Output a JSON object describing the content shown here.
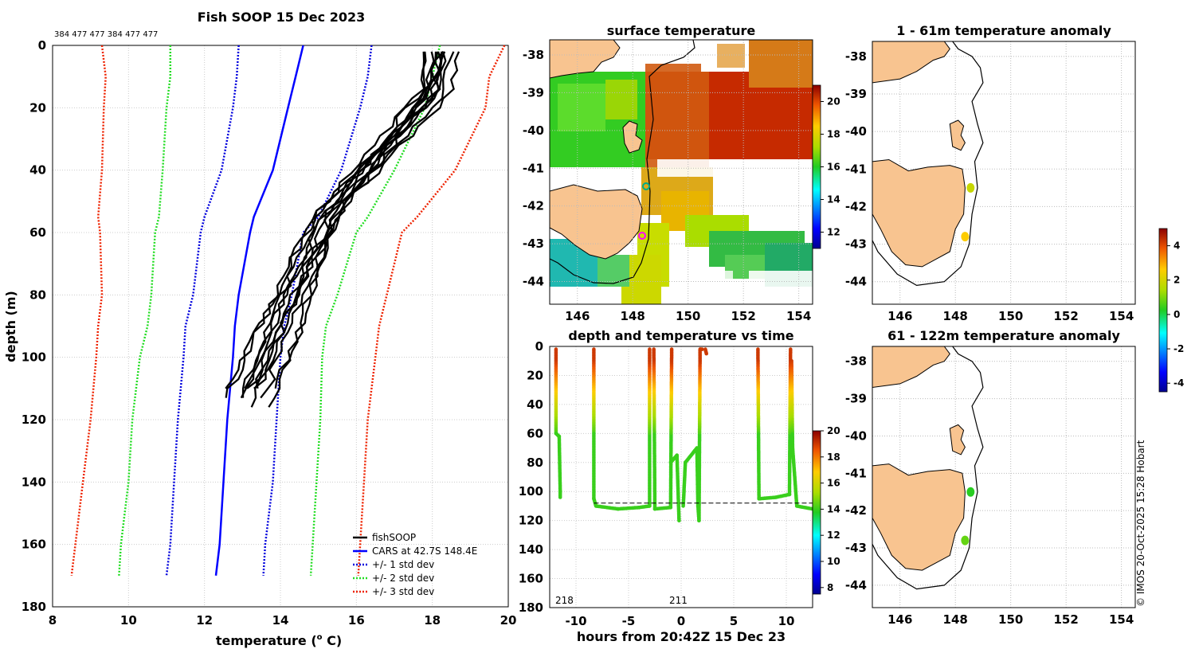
{
  "figure": {
    "copyright": "© IMOS 20-Oct-2025 15:28 Hobart"
  },
  "chart_data": [
    {
      "id": "profile",
      "type": "line",
      "title": "Fish SOOP 15 Dec 2023",
      "xlabel_main": "temperature (",
      "xlabel_sup": "o",
      "xlabel_end": " C)",
      "ylabel": "depth (m)",
      "xlim": [
        8,
        20
      ],
      "ylim": [
        180,
        0
      ],
      "xticks": [
        "8",
        "10",
        "12",
        "14",
        "16",
        "18",
        "20"
      ],
      "yticks": [
        "0",
        "20",
        "40",
        "60",
        "80",
        "100",
        "120",
        "140",
        "160",
        "180"
      ],
      "top_labels": "384 477 477 384 477 477",
      "legend": [
        "fishSOOP",
        "CARS at 42.7S 148.4E",
        "+/- 1 std dev",
        "+/- 2 std dev",
        "+/- 3 std dev"
      ],
      "colors": {
        "fishsoop": "#000000",
        "cars": "#0000ff",
        "std1": "#0000dd",
        "std2": "#22dd22",
        "std3": "#ee2200"
      },
      "depths": [
        0,
        10,
        20,
        40,
        55,
        60,
        80,
        90,
        100,
        120,
        140,
        160,
        170
      ],
      "series": [
        {
          "name": "CARS",
          "values": [
            14.6,
            14.4,
            14.2,
            13.8,
            13.3,
            13.2,
            12.9,
            12.8,
            12.75,
            12.6,
            12.5,
            12.4,
            12.3
          ]
        },
        {
          "name": "-1 std",
          "values": [
            12.9,
            12.85,
            12.75,
            12.45,
            12.0,
            11.9,
            11.7,
            11.5,
            11.45,
            11.3,
            11.2,
            11.1,
            11.0
          ]
        },
        {
          "name": "+1 std",
          "values": [
            16.4,
            16.3,
            16.1,
            15.6,
            15.0,
            14.6,
            14.3,
            14.1,
            14.0,
            13.9,
            13.8,
            13.6,
            13.55
          ]
        },
        {
          "name": "-2 std",
          "values": [
            11.1,
            11.1,
            11.0,
            10.9,
            10.8,
            10.7,
            10.6,
            10.5,
            10.3,
            10.1,
            10.0,
            9.8,
            9.75
          ]
        },
        {
          "name": "+2 std",
          "values": [
            18.2,
            18.0,
            17.8,
            17.0,
            16.3,
            16.0,
            15.5,
            15.2,
            15.1,
            15.05,
            14.95,
            14.85,
            14.8
          ]
        },
        {
          "name": "-3 std",
          "values": [
            9.3,
            9.4,
            9.35,
            9.3,
            9.2,
            9.25,
            9.3,
            9.2,
            9.15,
            9.0,
            8.8,
            8.6,
            8.5
          ]
        },
        {
          "name": "+3 std",
          "values": [
            19.9,
            19.5,
            19.4,
            18.6,
            17.6,
            17.2,
            16.8,
            16.6,
            16.5,
            16.3,
            16.2,
            16.1,
            16.05
          ]
        }
      ],
      "fishsoop_range": {
        "surface_temp": [
          17.9,
          18.8
        ],
        "bottom_temp": [
          12.5,
          13.9
        ],
        "max_depth": 122
      }
    },
    {
      "id": "sst",
      "type": "heatmap",
      "title": "surface temperature",
      "xlim": [
        145,
        154.5
      ],
      "ylim": [
        -44.6,
        -37.6
      ],
      "xticks": [
        "146",
        "148",
        "150",
        "152",
        "154"
      ],
      "yticks": [
        "-38",
        "-39",
        "-40",
        "-41",
        "-42",
        "-43",
        "-44"
      ],
      "colorbar_ticks": [
        "12",
        "14",
        "16",
        "18",
        "20"
      ],
      "colorbar_range": [
        11,
        21
      ]
    },
    {
      "id": "timeseries",
      "type": "scatter",
      "title": "depth and temperature vs time",
      "xlabel": "hours from 20:42Z 15 Dec 23",
      "xlim": [
        -12.5,
        12.5
      ],
      "ylim": [
        180,
        0
      ],
      "xticks": [
        "-10",
        "-5",
        "0",
        "5",
        "10"
      ],
      "yticks": [
        "0",
        "20",
        "40",
        "60",
        "80",
        "100",
        "120",
        "140",
        "160",
        "180"
      ],
      "annotations": [
        "218",
        "211"
      ],
      "colorbar_ticks": [
        "8",
        "10",
        "12",
        "14",
        "16",
        "18",
        "20"
      ],
      "colorbar_range": [
        7.5,
        20
      ],
      "bottom_line_depth": 108
    },
    {
      "id": "anom1",
      "type": "map",
      "title": "1 - 61m temperature anomaly",
      "xlim": [
        145,
        154.5
      ],
      "ylim": [
        -44.6,
        -37.6
      ],
      "xticks": [
        "146",
        "148",
        "150",
        "152",
        "154"
      ],
      "yticks": [
        "-38",
        "-39",
        "-40",
        "-41",
        "-42",
        "-43",
        "-44"
      ],
      "points": [
        {
          "lon": 148.55,
          "lat": -41.5,
          "anomaly": 1.8
        },
        {
          "lon": 148.35,
          "lat": -42.8,
          "anomaly": 2.6
        }
      ]
    },
    {
      "id": "anom2",
      "type": "map",
      "title": "61 - 122m temperature anomaly",
      "xlim": [
        145,
        154.5
      ],
      "ylim": [
        -44.6,
        -37.6
      ],
      "xticks": [
        "146",
        "148",
        "150",
        "152",
        "154"
      ],
      "yticks": [
        "-38",
        "-39",
        "-40",
        "-41",
        "-42",
        "-43",
        "-44"
      ],
      "points": [
        {
          "lon": 148.55,
          "lat": -41.5,
          "anomaly": 0.3
        },
        {
          "lon": 148.35,
          "lat": -42.8,
          "anomaly": 0.8
        }
      ]
    },
    {
      "id": "anom_colorbar",
      "type": "colorbar",
      "ticks": [
        "4",
        "2",
        "0",
        "-2",
        "-4"
      ],
      "range": [
        -4.5,
        5
      ]
    }
  ]
}
